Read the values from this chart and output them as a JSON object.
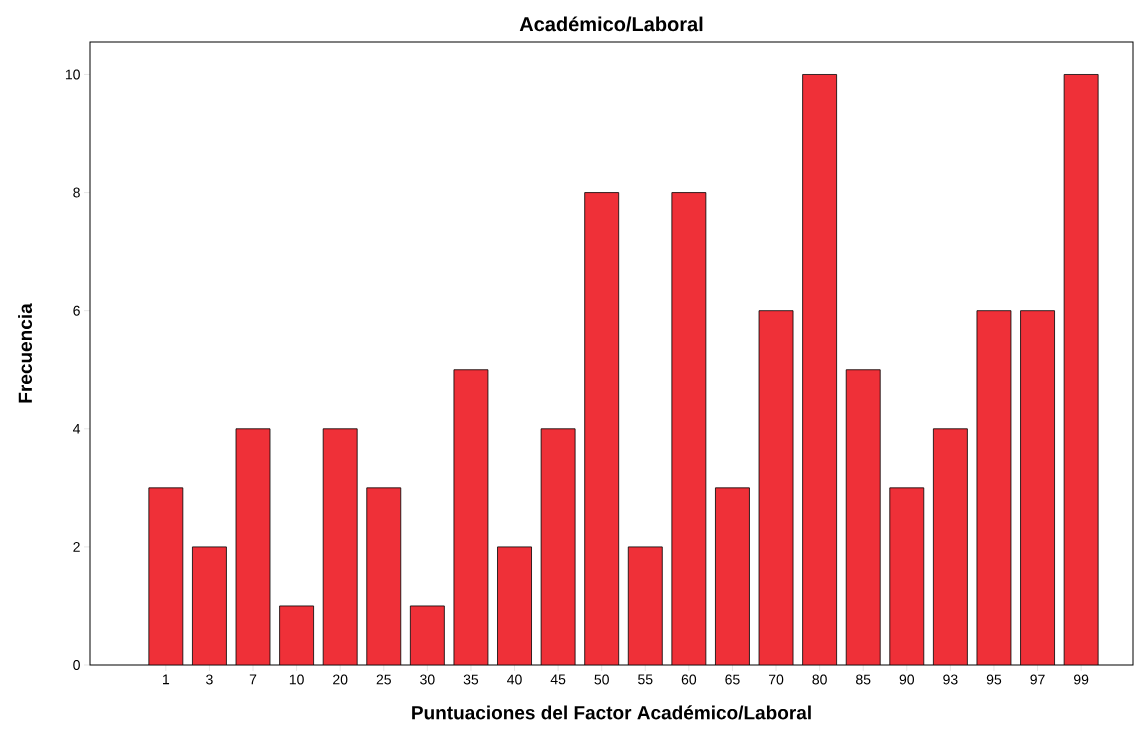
{
  "chart_data": {
    "type": "bar",
    "title": "Académico/Laboral",
    "xlabel": "Puntuaciones del Factor Académico/Laboral",
    "ylabel": "Frecuencia",
    "categories": [
      "1",
      "3",
      "7",
      "10",
      "20",
      "25",
      "30",
      "35",
      "40",
      "45",
      "50",
      "55",
      "60",
      "65",
      "70",
      "80",
      "85",
      "90",
      "93",
      "95",
      "97",
      "99"
    ],
    "values": [
      3,
      2,
      4,
      1,
      4,
      3,
      1,
      5,
      2,
      4,
      8,
      2,
      8,
      3,
      6,
      10,
      5,
      3,
      4,
      6,
      6,
      10
    ],
    "color": "#ef3038",
    "ylim": [
      0,
      10.55
    ],
    "yticks": [
      0,
      2,
      4,
      6,
      8,
      10
    ],
    "grid": false
  }
}
